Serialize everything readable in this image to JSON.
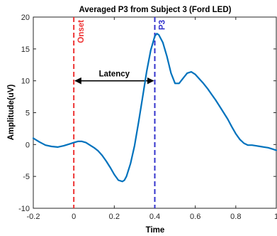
{
  "chart_data": {
    "type": "line",
    "title": "Averaged P3 from Subject 3 (Ford LED)",
    "xlabel": "Time",
    "ylabel": "Amplitude(uV)",
    "xlim": [
      -0.2,
      1.0
    ],
    "ylim": [
      -10,
      20
    ],
    "xticks": [
      -0.2,
      0,
      0.2,
      0.4,
      0.6,
      0.8,
      1.0
    ],
    "xtick_labels": [
      "-0.2",
      "0",
      "0.2",
      "0.4",
      "0.6",
      "0.8",
      "1"
    ],
    "yticks": [
      -10,
      -5,
      0,
      5,
      10,
      15,
      20
    ],
    "grid": false,
    "series": [
      {
        "color": "#0072BD",
        "x": [
          -0.2,
          -0.17,
          -0.14,
          -0.11,
          -0.08,
          -0.05,
          -0.02,
          0.0,
          0.02,
          0.04,
          0.06,
          0.08,
          0.1,
          0.12,
          0.14,
          0.16,
          0.18,
          0.2,
          0.22,
          0.24,
          0.25,
          0.26,
          0.28,
          0.3,
          0.32,
          0.34,
          0.36,
          0.38,
          0.4,
          0.41,
          0.42,
          0.44,
          0.46,
          0.48,
          0.5,
          0.52,
          0.54,
          0.56,
          0.58,
          0.6,
          0.62,
          0.64,
          0.66,
          0.68,
          0.7,
          0.72,
          0.74,
          0.76,
          0.78,
          0.8,
          0.82,
          0.84,
          0.86,
          0.88,
          0.9,
          0.92,
          0.94,
          0.96,
          0.98,
          1.0
        ],
        "y": [
          1.0,
          0.4,
          -0.1,
          -0.3,
          -0.4,
          -0.2,
          0.1,
          0.3,
          0.5,
          0.5,
          0.3,
          -0.1,
          -0.5,
          -1.0,
          -1.7,
          -2.6,
          -3.6,
          -4.7,
          -5.6,
          -5.8,
          -5.6,
          -5.0,
          -3.0,
          -0.2,
          3.5,
          7.5,
          11.5,
          14.8,
          17.0,
          17.4,
          17.2,
          16.0,
          13.8,
          11.2,
          9.6,
          9.6,
          10.4,
          11.2,
          11.4,
          11.0,
          10.3,
          9.6,
          8.8,
          7.9,
          7.0,
          6.0,
          5.0,
          4.0,
          2.8,
          1.7,
          0.8,
          0.2,
          -0.1,
          -0.1,
          -0.2,
          -0.3,
          -0.4,
          -0.5,
          -0.7,
          -0.9
        ]
      }
    ],
    "vlines": [
      {
        "x": 0.0,
        "color": "#EE3333",
        "label": "Onset"
      },
      {
        "x": 0.4,
        "color": "#3333CC",
        "label": "P3"
      }
    ],
    "latency_arrow": {
      "x_start": 0.0,
      "x_end": 0.4,
      "y": 10,
      "label": "Latency"
    }
  }
}
